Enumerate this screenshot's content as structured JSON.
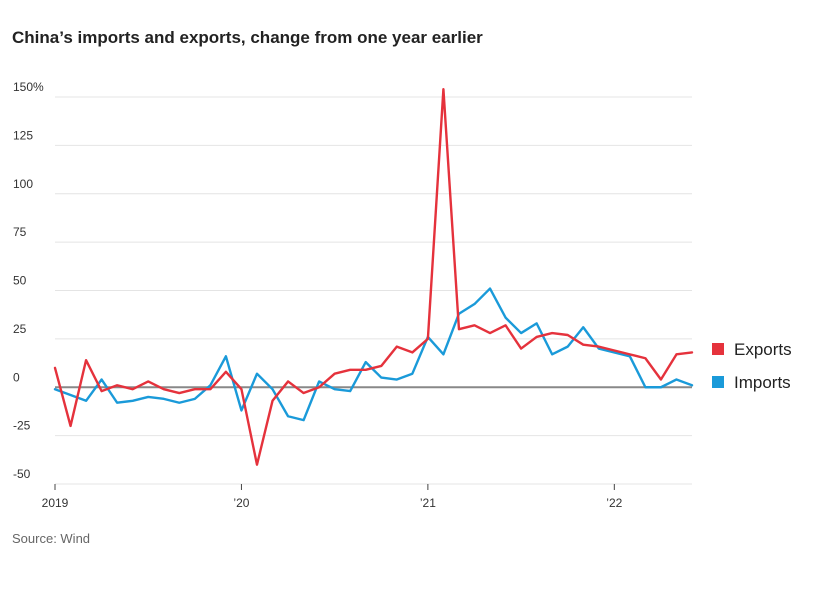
{
  "chart_data": {
    "type": "line",
    "title": "China’s imports and exports, change from one year earlier",
    "source": "Source: Wind",
    "xlabel": "",
    "ylabel": "",
    "ylim": [
      -50,
      150
    ],
    "y_ticks": [
      {
        "value": 150,
        "label": "150%"
      },
      {
        "value": 125,
        "label": "125"
      },
      {
        "value": 100,
        "label": "100"
      },
      {
        "value": 75,
        "label": "75"
      },
      {
        "value": 50,
        "label": "50"
      },
      {
        "value": 25,
        "label": "25"
      },
      {
        "value": 0,
        "label": "0"
      },
      {
        "value": -25,
        "label": "-25"
      },
      {
        "value": -50,
        "label": "-50"
      }
    ],
    "x_ticks": [
      {
        "x": "2019-01",
        "label": "2019"
      },
      {
        "x": "2020-01",
        "label": "’20"
      },
      {
        "x": "2021-01",
        "label": "’21"
      },
      {
        "x": "2022-01",
        "label": "’22"
      }
    ],
    "x": [
      "2019-01",
      "2019-02",
      "2019-03",
      "2019-04",
      "2019-05",
      "2019-06",
      "2019-07",
      "2019-08",
      "2019-09",
      "2019-10",
      "2019-11",
      "2019-12",
      "2020-01",
      "2020-02",
      "2020-03",
      "2020-04",
      "2020-05",
      "2020-06",
      "2020-07",
      "2020-08",
      "2020-09",
      "2020-10",
      "2020-11",
      "2020-12",
      "2021-01",
      "2021-02",
      "2021-03",
      "2021-04",
      "2021-05",
      "2021-06",
      "2021-07",
      "2021-08",
      "2021-09",
      "2021-10",
      "2021-11",
      "2021-12",
      "2022-01",
      "2022-02",
      "2022-03",
      "2022-04",
      "2022-05",
      "2022-06"
    ],
    "grid": true,
    "legend_position": "right",
    "series": [
      {
        "name": "Exports",
        "color": "#e5323c",
        "values": [
          10,
          -20,
          14,
          -2,
          1,
          -1,
          3,
          -1,
          -3,
          -1,
          -1,
          8,
          -1,
          -40,
          -7,
          3,
          -3,
          0,
          7,
          9,
          9,
          11,
          21,
          18,
          25,
          154,
          30,
          32,
          28,
          32,
          20,
          26,
          28,
          27,
          22,
          21,
          19,
          17,
          15,
          4,
          17,
          18
        ]
      },
      {
        "name": "Imports",
        "color": "#1a9ad9",
        "values": [
          -1,
          -4,
          -7,
          4,
          -8,
          -7,
          -5,
          -6,
          -8,
          -6,
          1,
          16,
          -12,
          7,
          -1,
          -15,
          -17,
          3,
          -1,
          -2,
          13,
          5,
          4,
          7,
          26,
          17,
          38,
          43,
          51,
          36,
          28,
          33,
          17,
          21,
          31,
          20,
          18,
          16,
          0,
          0,
          4,
          1
        ]
      }
    ]
  }
}
